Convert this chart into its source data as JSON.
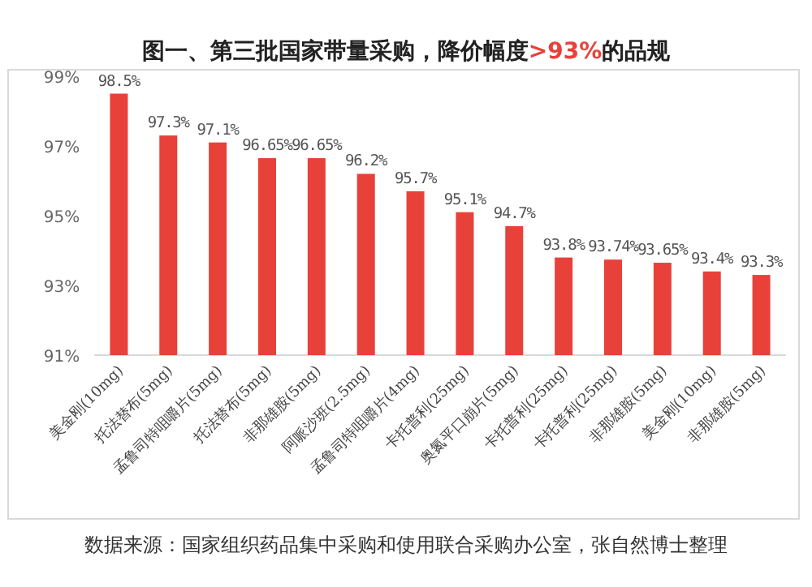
{
  "chart_data": {
    "type": "bar",
    "title": "图一、第三批国家带量采购，降价幅度>93%的品规",
    "categories": [
      "美金刚(10mg)",
      "托法替布(5mg)",
      "孟鲁司特咀嚼片(5mg)",
      "托法替布(5mg)",
      "非那雄胺(5mg)",
      "阿哌沙班(2.5mg)",
      "孟鲁司特咀嚼片(4mg)",
      "卡托普利(25mg)",
      "奥氮平口崩片(5mg)",
      "卡托普利(25mg)",
      "卡托普利(25mg)",
      "非那雄胺(5mg)",
      "美金刚(10mg)",
      "非那雄胺(5mg)"
    ],
    "values": [
      98.5,
      97.3,
      97.1,
      96.65,
      96.65,
      96.2,
      95.7,
      95.1,
      94.7,
      93.8,
      93.74,
      93.65,
      93.4,
      93.3
    ],
    "value_labels": [
      "98.5%",
      "97.3%",
      "97.1%",
      "96.65%",
      "96.65%",
      "96.2%",
      "95.7%",
      "95.1%",
      "94.7%",
      "93.8%",
      "93.74%",
      "93.65%",
      "93.4%",
      "93.3%"
    ],
    "color": "#e8413a",
    "ylim": [
      91,
      99
    ],
    "yticks": [
      {
        "value": 91,
        "label": "91%"
      },
      {
        "value": 93,
        "label": "93%"
      },
      {
        "value": 95,
        "label": "95%"
      },
      {
        "value": 97,
        "label": "97%"
      },
      {
        "value": 99,
        "label": "99%"
      }
    ],
    "annotations": [
      "数据来源：国家组织药品集中采购和使用联合采购办公室，张自然博士整理"
    ]
  }
}
